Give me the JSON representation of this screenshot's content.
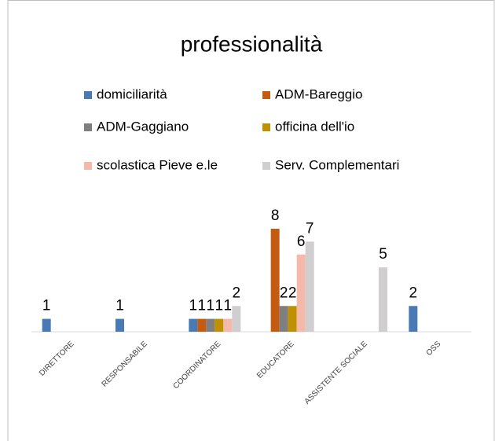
{
  "chart_data": {
    "type": "bar",
    "title": "professionalità",
    "categories": [
      "DIRETTORE",
      "RESPONSABILE",
      "COORDINATORE",
      "EDUCATORE",
      "ASSISTENTE SOCIALE",
      "OSS"
    ],
    "series": [
      {
        "name": "domiciliarità",
        "color": "#4a7ab5",
        "values": [
          1,
          1,
          1,
          null,
          null,
          2
        ]
      },
      {
        "name": "ADM-Bareggio",
        "color": "#c55a11",
        "values": [
          null,
          null,
          1,
          8,
          null,
          null
        ]
      },
      {
        "name": "ADM-Gaggiano",
        "color": "#7f7f7f",
        "values": [
          null,
          null,
          1,
          2,
          null,
          null
        ]
      },
      {
        "name": "officina dell'io",
        "color": "#bf9000",
        "values": [
          null,
          null,
          1,
          2,
          null,
          null
        ]
      },
      {
        "name": "scolastica Pieve e.le",
        "color": "#f4b9a8",
        "values": [
          null,
          null,
          1,
          6,
          null,
          null
        ]
      },
      {
        "name": "Serv. Complementari",
        "color": "#d0cece",
        "values": [
          null,
          null,
          2,
          7,
          5,
          null
        ]
      }
    ],
    "ylim": [
      0,
      8
    ],
    "legend": "top"
  }
}
